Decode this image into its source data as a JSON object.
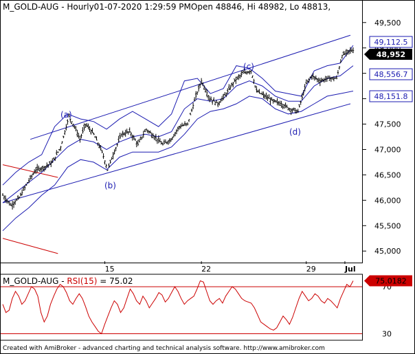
{
  "chart_data": [
    {
      "type": "candlestick",
      "title": "M_GOLD-AUG - Hourly01-07-2020 1:29:59 PMOpen 48846, Hi 48982, Lo 48813,",
      "ylim": [
        44800,
        49700
      ],
      "y_ticks": [
        45000,
        45500,
        46000,
        46500,
        47000,
        47500,
        48000,
        48500,
        49000,
        49500
      ],
      "y_tick_labels": [
        "45,000",
        "45,500",
        "46,000",
        "46,500",
        "47,000",
        "47,500",
        "48,000",
        "48,500",
        "49,000",
        "49,500"
      ],
      "x_tick_labels": [
        "15",
        "22",
        "29",
        "Jul"
      ],
      "price_path": [
        [
          0,
          46100
        ],
        [
          3,
          45900
        ],
        [
          6,
          46050
        ],
        [
          9,
          46350
        ],
        [
          12,
          46600
        ],
        [
          15,
          46650
        ],
        [
          18,
          46750
        ],
        [
          21,
          47050
        ],
        [
          24,
          47650
        ],
        [
          26,
          47450
        ],
        [
          28,
          47200
        ],
        [
          30,
          47500
        ],
        [
          33,
          47300
        ],
        [
          36,
          46950
        ],
        [
          38,
          46600
        ],
        [
          40,
          46900
        ],
        [
          43,
          47300
        ],
        [
          46,
          47350
        ],
        [
          49,
          47100
        ],
        [
          52,
          47400
        ],
        [
          55,
          47250
        ],
        [
          58,
          47100
        ],
        [
          61,
          47200
        ],
        [
          64,
          47450
        ],
        [
          67,
          47500
        ],
        [
          70,
          48050
        ],
        [
          72,
          48350
        ],
        [
          75,
          48000
        ],
        [
          78,
          47900
        ],
        [
          81,
          48100
        ],
        [
          84,
          48350
        ],
        [
          87,
          48500
        ],
        [
          90,
          48550
        ],
        [
          92,
          48150
        ],
        [
          95,
          48050
        ],
        [
          98,
          47950
        ],
        [
          101,
          47900
        ],
        [
          104,
          47800
        ],
        [
          107,
          47750
        ],
        [
          110,
          48300
        ],
        [
          112,
          48450
        ],
        [
          115,
          48350
        ],
        [
          118,
          48400
        ],
        [
          121,
          48400
        ],
        [
          123,
          48850
        ],
        [
          126,
          48950
        ]
      ],
      "x_max": 127,
      "bands": {
        "upper": [
          46300,
          46550,
          46750,
          46900,
          47450,
          47700,
          47600,
          47550,
          47400,
          47600,
          47750,
          47600,
          47450,
          47700,
          48350,
          48400,
          48100,
          48200,
          48650,
          48600,
          48400,
          48150,
          48100,
          48050,
          48550,
          48650,
          48700,
          49050
        ],
        "middle": [
          45950,
          46150,
          46350,
          46550,
          46800,
          47050,
          47200,
          47150,
          47000,
          47150,
          47250,
          47300,
          47250,
          47350,
          47800,
          48000,
          47950,
          48000,
          48250,
          48350,
          48250,
          48050,
          47950,
          47950,
          48250,
          48400,
          48450,
          48650
        ],
        "lower": [
          45400,
          45650,
          45850,
          46100,
          46300,
          46650,
          46800,
          46750,
          46600,
          46850,
          46950,
          46950,
          46950,
          47050,
          47300,
          47600,
          47750,
          47800,
          47900,
          48050,
          48000,
          47800,
          47700,
          47750,
          47900,
          48050,
          48100,
          48150
        ]
      },
      "channel_upper": [
        [
          10,
          47200
        ],
        [
          126,
          49250
        ]
      ],
      "channel_lower": [
        [
          0,
          45950
        ],
        [
          126,
          47900
        ]
      ],
      "red_lines": [
        {
          "from": [
            0,
            46700
          ],
          "to": [
            20,
            46450
          ]
        },
        {
          "from": [
            0,
            45250
          ],
          "to": [
            20,
            44950
          ]
        }
      ],
      "wave_labels": [
        "(a)",
        "(b)",
        "(c)",
        "(d)"
      ],
      "price_badges": [
        {
          "label": "49,112.5",
          "style": "outline",
          "value": 49112.5
        },
        {
          "label": "48,952",
          "style": "filled",
          "value": 48952
        },
        {
          "label": "48,556.7",
          "style": "outline",
          "value": 48556.7
        },
        {
          "label": "48,151.8",
          "style": "outline",
          "value": 48151.8
        }
      ]
    },
    {
      "type": "line",
      "title_prefix": "M_GOLD-AUG - ",
      "title_indicator": "RSI(15)",
      "title_value": " = 75.02",
      "ylim": [
        25,
        80
      ],
      "y_tick_labels": [
        "70",
        "30"
      ],
      "y_ticks": [
        70,
        30
      ],
      "levels": [
        70,
        30
      ],
      "rsi_values": [
        55,
        48,
        50,
        60,
        66,
        62,
        55,
        58,
        64,
        70,
        68,
        62,
        48,
        40,
        45,
        55,
        62,
        68,
        72,
        70,
        65,
        58,
        55,
        60,
        64,
        60,
        53,
        45,
        40,
        36,
        32,
        30,
        38,
        45,
        52,
        58,
        55,
        48,
        52,
        60,
        68,
        64,
        58,
        55,
        62,
        58,
        52,
        56,
        60,
        65,
        63,
        57,
        60,
        65,
        70,
        66,
        60,
        55,
        58,
        60,
        62,
        68,
        75,
        74,
        66,
        58,
        55,
        58,
        60,
        56,
        62,
        66,
        70,
        68,
        64,
        60,
        58,
        57,
        56,
        52,
        46,
        40,
        38,
        36,
        34,
        33,
        35,
        40,
        45,
        42,
        38,
        44,
        52,
        60,
        66,
        62,
        58,
        60,
        64,
        62,
        58,
        56,
        60,
        58,
        55,
        52,
        60,
        66,
        72,
        70,
        75
      ],
      "badge": {
        "label": "75.0182",
        "value": 75.0182
      }
    }
  ],
  "footer": "Created with AmiBroker - advanced charting and technical analysis software. http://www.amibroker.com",
  "colors": {
    "price": "#000000",
    "bands": "#1a1ab0",
    "channel": "#1a1ab0",
    "red": "#cc0000",
    "badge_text": "#1a1ab0",
    "badge_filled_bg": "#000000",
    "rsi": "#cc0000"
  }
}
